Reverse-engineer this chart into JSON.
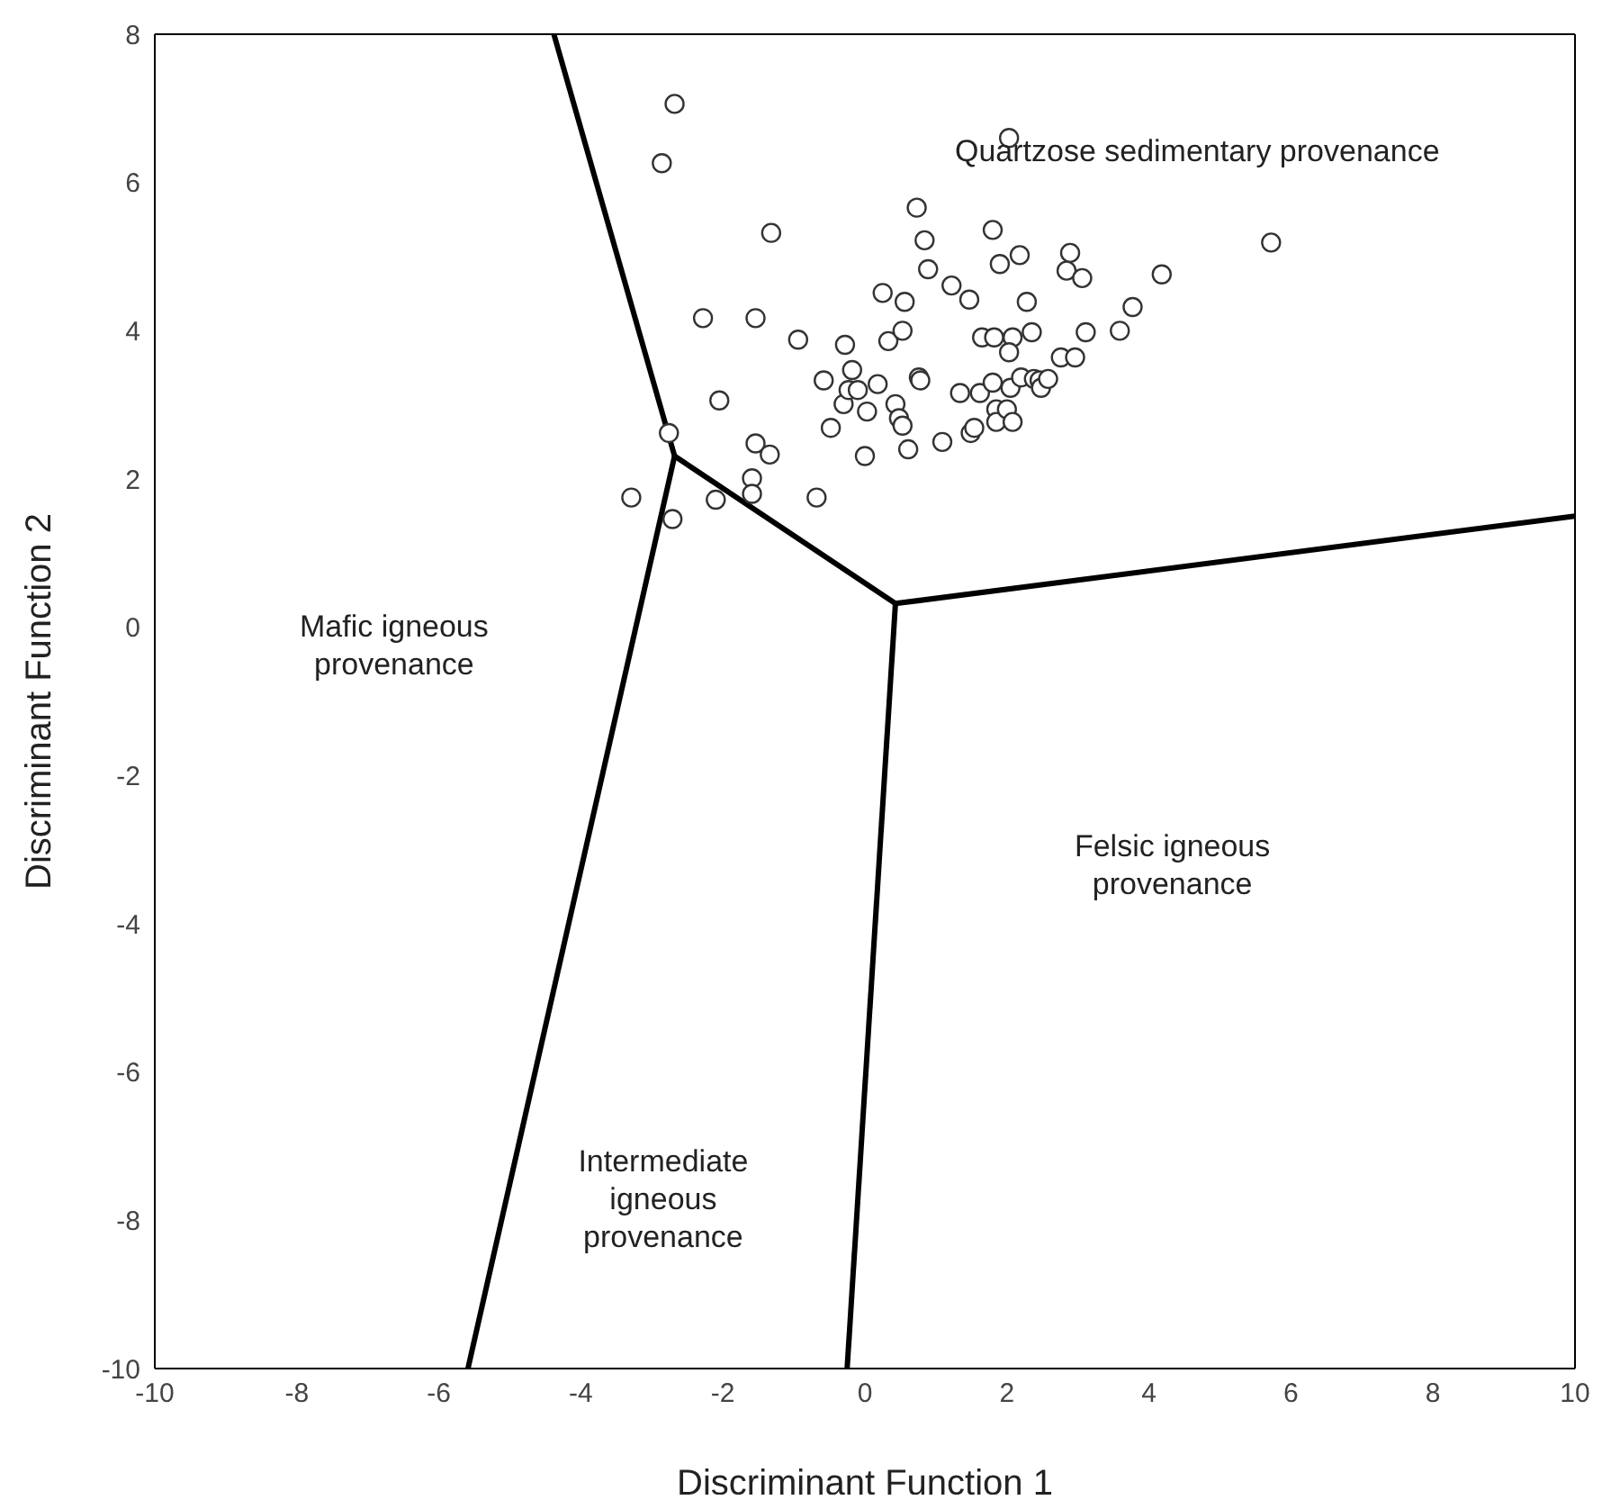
{
  "chart_data": {
    "type": "scatter",
    "xlabel": "Discriminant Function 1",
    "ylabel": "Discriminant Function 2",
    "xlim": [
      -10,
      10
    ],
    "ylim": [
      -10,
      8
    ],
    "xticks": [
      -10,
      -8,
      -6,
      -4,
      -2,
      0,
      2,
      4,
      6,
      8,
      10
    ],
    "yticks": [
      -10,
      -8,
      -6,
      -4,
      -2,
      0,
      2,
      4,
      6,
      8
    ],
    "marker": "circle",
    "series": [
      {
        "color": "#333333",
        "x": [
          -2.68,
          -2.86,
          -1.32,
          -2.28,
          -1.54,
          -0.94,
          -2.05,
          -2.76,
          -1.54,
          -1.34,
          -3.29,
          -2.71,
          -2.1,
          -1.59,
          -1.59,
          -0.68,
          -0.28,
          -0.58,
          -0.3,
          -0.18,
          -0.23,
          -0.1,
          0.18,
          0.03,
          -0.48,
          0,
          0.25,
          0.33,
          0.53,
          0.56,
          0.43,
          0.48,
          0.53,
          0.61,
          0.76,
          0.78,
          0.73,
          0.84,
          0.89,
          1.09,
          1.22,
          1.34,
          1.47,
          1.49,
          1.54,
          1.62,
          1.65,
          1.8,
          1.82,
          1.8,
          1.85,
          1.85,
          1.9,
          2.0,
          2.03,
          2.08,
          2.03,
          2.05,
          2.08,
          2.18,
          2.2,
          2.28,
          2.38,
          2.35,
          2.46,
          2.48,
          2.58,
          2.76,
          2.89,
          2.84,
          2.96,
          3.06,
          3.11,
          3.59,
          3.77,
          4.18,
          5.72
        ],
        "values": [
          7.06,
          6.26,
          5.32,
          4.17,
          4.17,
          3.88,
          3.06,
          2.62,
          2.48,
          2.33,
          1.75,
          1.46,
          1.72,
          2.01,
          1.8,
          1.75,
          3.81,
          3.33,
          3.01,
          3.47,
          3.2,
          3.2,
          3.28,
          2.91,
          2.69,
          2.31,
          4.51,
          3.86,
          4.0,
          4.39,
          3.01,
          2.82,
          2.72,
          2.4,
          3.37,
          3.33,
          5.66,
          5.22,
          4.83,
          2.5,
          4.61,
          3.16,
          4.42,
          2.62,
          2.69,
          3.16,
          3.91,
          5.36,
          3.91,
          3.3,
          2.94,
          2.77,
          4.9,
          2.94,
          6.6,
          3.91,
          3.71,
          3.23,
          2.77,
          5.02,
          3.37,
          4.39,
          3.35,
          3.98,
          3.33,
          3.23,
          3.35,
          3.64,
          5.05,
          4.81,
          3.64,
          4.71,
          3.98,
          4.0,
          4.32,
          4.76,
          5.19
        ]
      },
      {
        "type": "line",
        "marker": "none",
        "color": "#000000",
        "line_style": "solid",
        "x": [
          -4.38,
          -2.68
        ],
        "values": [
          8,
          2.31
        ]
      },
      {
        "type": "line",
        "marker": "none",
        "color": "#000000",
        "line_style": "solid",
        "x": [
          -2.68,
          -5.59
        ],
        "values": [
          2.31,
          -10
        ]
      },
      {
        "type": "line",
        "marker": "none",
        "color": "#000000",
        "line_style": "solid",
        "x": [
          -2.68,
          0.43
        ],
        "values": [
          2.31,
          0.32
        ]
      },
      {
        "type": "line",
        "marker": "none",
        "color": "#000000",
        "line_style": "solid",
        "x": [
          0.43,
          10
        ],
        "values": [
          0.32,
          1.5
        ]
      },
      {
        "type": "line",
        "marker": "none",
        "color": "#000000",
        "line_style": "solid",
        "x": [
          0.43,
          -0.25
        ],
        "values": [
          0.32,
          -10
        ]
      }
    ],
    "annotations": [
      "Quartzose sedimentary provenance",
      "Mafic igneous\nprovenance",
      "Felsic igneous\nprovenance",
      "Intermediate\nigneous\nprovenance"
    ]
  }
}
